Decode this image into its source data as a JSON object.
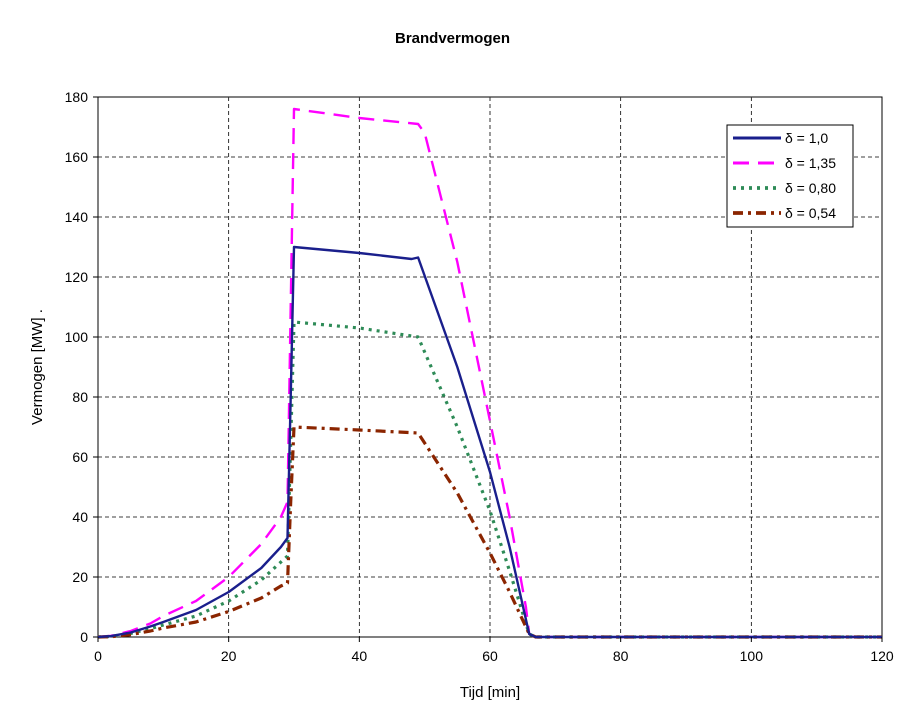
{
  "chart_data": {
    "type": "line",
    "title": "Brandvermogen",
    "xlabel": "Tijd [min]",
    "ylabel": "Vermogen [MW] .",
    "xlim": [
      0,
      120
    ],
    "ylim": [
      0,
      180
    ],
    "x_ticks": [
      0,
      20,
      40,
      60,
      80,
      100,
      120
    ],
    "y_ticks": [
      0,
      20,
      40,
      60,
      80,
      100,
      120,
      140,
      160,
      180
    ],
    "grid": true,
    "legend_position": "top-right",
    "series": [
      {
        "name": "δ = 1,0",
        "color": "#1a1f8c",
        "style": "solid",
        "points": [
          [
            0,
            0
          ],
          [
            2,
            0.3
          ],
          [
            5,
            1.5
          ],
          [
            8,
            3.5
          ],
          [
            10,
            5
          ],
          [
            15,
            9
          ],
          [
            20,
            15
          ],
          [
            25,
            23
          ],
          [
            28,
            30
          ],
          [
            29,
            33
          ],
          [
            29.5,
            80
          ],
          [
            30,
            130
          ],
          [
            40,
            128
          ],
          [
            48,
            126
          ],
          [
            49,
            126.5
          ],
          [
            55,
            90
          ],
          [
            60,
            55
          ],
          [
            63,
            30
          ],
          [
            66,
            1
          ],
          [
            67,
            0
          ],
          [
            120,
            0
          ]
        ]
      },
      {
        "name": "δ = 1,35",
        "color": "#ff00ff",
        "style": "dash",
        "points": [
          [
            0,
            0
          ],
          [
            2,
            0.4
          ],
          [
            5,
            2
          ],
          [
            8,
            4.5
          ],
          [
            10,
            7
          ],
          [
            15,
            12
          ],
          [
            20,
            20
          ],
          [
            25,
            31
          ],
          [
            28,
            40
          ],
          [
            29,
            45
          ],
          [
            29.5,
            110
          ],
          [
            30,
            176
          ],
          [
            40,
            173
          ],
          [
            49,
            171
          ],
          [
            50,
            168
          ],
          [
            55,
            125
          ],
          [
            60,
            72
          ],
          [
            63,
            40
          ],
          [
            65.5,
            10
          ],
          [
            66,
            1
          ],
          [
            67,
            0
          ],
          [
            120,
            0
          ]
        ]
      },
      {
        "name": "δ = 0,80",
        "color": "#2e8b57",
        "style": "dot",
        "points": [
          [
            0,
            0
          ],
          [
            2,
            0.2
          ],
          [
            5,
            1.2
          ],
          [
            8,
            2.8
          ],
          [
            10,
            4
          ],
          [
            15,
            7
          ],
          [
            20,
            12
          ],
          [
            25,
            19
          ],
          [
            28,
            25
          ],
          [
            29,
            27
          ],
          [
            29.5,
            65
          ],
          [
            30,
            105
          ],
          [
            40,
            103
          ],
          [
            49,
            100
          ],
          [
            55,
            70
          ],
          [
            60,
            42
          ],
          [
            63,
            22
          ],
          [
            66,
            1
          ],
          [
            67,
            0
          ],
          [
            120,
            0
          ]
        ]
      },
      {
        "name": "δ = 0,54",
        "color": "#8b2500",
        "style": "dashdot",
        "points": [
          [
            0,
            0
          ],
          [
            2,
            0.1
          ],
          [
            5,
            0.8
          ],
          [
            8,
            2
          ],
          [
            10,
            3
          ],
          [
            15,
            5
          ],
          [
            20,
            8.5
          ],
          [
            25,
            13
          ],
          [
            28,
            17
          ],
          [
            29,
            18
          ],
          [
            29.5,
            45
          ],
          [
            30,
            70
          ],
          [
            40,
            69
          ],
          [
            49,
            68
          ],
          [
            55,
            48
          ],
          [
            60,
            28
          ],
          [
            63,
            15
          ],
          [
            66,
            1
          ],
          [
            67,
            0
          ],
          [
            120,
            0
          ]
        ]
      }
    ]
  }
}
